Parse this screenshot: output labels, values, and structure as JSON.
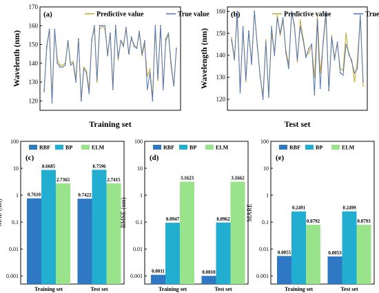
{
  "colors": {
    "predictive": "#c9a227",
    "true": "#4f74b5",
    "rbf": "#2f78c4",
    "bp": "#22aed1",
    "elm": "#99e38a"
  },
  "chart_data": [
    {
      "panel": "(a)",
      "type": "line",
      "xlabel": "Training set",
      "ylabel": "Wavelenth (nm)",
      "ylim": [
        115,
        170
      ],
      "yticks": [
        120,
        130,
        140,
        150,
        160,
        170
      ],
      "legend_position": "top-right",
      "series": [
        {
          "name": "Predictive value",
          "values": [
            126,
            148,
            158,
            122,
            157,
            142,
            139,
            139,
            140,
            152,
            140,
            141,
            132,
            153,
            121,
            138,
            136,
            126,
            153,
            158,
            130,
            158,
            160,
            158,
            145,
            156,
            128,
            160,
            142,
            152,
            150,
            158,
            145,
            153,
            150,
            148,
            156,
            144,
            150,
            133,
            137,
            122,
            158,
            131,
            160,
            127,
            152,
            155,
            138,
            128,
            148
          ]
        },
        {
          "name": "True value",
          "values": [
            125,
            149,
            158,
            119,
            158,
            140,
            138,
            138,
            139,
            152,
            139,
            140,
            130,
            153,
            120,
            137,
            135,
            124,
            152,
            160,
            131,
            160,
            160,
            160,
            144,
            156,
            126,
            160,
            143,
            152,
            149,
            159,
            145,
            154,
            149,
            148,
            157,
            145,
            152,
            126,
            135,
            120,
            160,
            132,
            160,
            126,
            153,
            156,
            140,
            128,
            148
          ]
        }
      ]
    },
    {
      "panel": "(b)",
      "type": "line",
      "xlabel": "Test set",
      "ylabel": "Wavelength (nm)",
      "ylim": [
        115,
        162
      ],
      "yticks": [
        120,
        130,
        140,
        150,
        160
      ],
      "legend_position": "top-right",
      "series": [
        {
          "name": "Predictive value",
          "values": [
            148,
            139,
            158,
            124,
            152,
            128,
            151,
            137,
            160,
            145,
            130,
            122,
            147,
            122,
            150,
            141,
            158,
            149,
            156,
            142,
            136,
            159,
            154,
            137,
            156,
            148,
            140,
            141,
            144,
            130,
            158,
            132,
            145,
            158,
            124,
            149,
            139,
            145,
            134,
            133,
            150,
            140,
            138,
            128,
            138,
            158,
            126
          ]
        },
        {
          "name": "True value",
          "values": [
            147,
            138,
            160,
            123,
            153,
            129,
            151,
            136,
            160,
            144,
            131,
            120,
            146,
            121,
            153,
            140,
            157,
            150,
            157,
            141,
            134,
            160,
            153,
            138,
            153,
            147,
            139,
            143,
            145,
            122,
            156,
            125,
            146,
            160,
            124,
            148,
            138,
            146,
            132,
            131,
            145,
            141,
            137,
            132,
            134,
            158,
            128
          ]
        }
      ]
    },
    {
      "panel": "(c)",
      "type": "bar",
      "ylabel": "MAE (nm)",
      "yscale": "log",
      "ylim": [
        0.0005,
        100
      ],
      "yticks": [
        "0.001",
        "0.01",
        "0.1",
        "1",
        "10",
        "100"
      ],
      "categories": [
        "Training set",
        "Test set"
      ],
      "legend_position": "top",
      "series": [
        {
          "name": "RBF",
          "values": [
            0.761,
            0.7422
          ],
          "labels": [
            "0.7610",
            "0.7422"
          ]
        },
        {
          "name": "BP",
          "values": [
            8.6685,
            8.7596
          ],
          "labels": [
            "8.6685",
            "8.7596"
          ]
        },
        {
          "name": "ELM",
          "values": [
            2.7365,
            2.7415
          ],
          "labels": [
            "2.7365",
            "2.7415"
          ]
        }
      ]
    },
    {
      "panel": "(d)",
      "type": "bar",
      "ylabel": "RMSE (nm)",
      "yscale": "log",
      "ylim": [
        0.0005,
        100
      ],
      "yticks": [
        "0.001",
        "0.01",
        "0.1",
        "1",
        "10",
        "100"
      ],
      "categories": [
        "Training set",
        "Test set"
      ],
      "legend_position": "top",
      "series": [
        {
          "name": "RBF",
          "values": [
            0.0011,
            0.001
          ],
          "labels": [
            "0.0011",
            "0.0010"
          ]
        },
        {
          "name": "BP",
          "values": [
            0.0947,
            0.0962
          ],
          "labels": [
            "0.0947",
            "0.0962"
          ]
        },
        {
          "name": "ELM",
          "values": [
            3.1623,
            3.1662
          ],
          "labels": [
            "3.1623",
            "3.1662"
          ]
        }
      ]
    },
    {
      "panel": "(e)",
      "type": "bar",
      "ylabel": "MARE",
      "yscale": "log",
      "ylim": [
        0.0005,
        100
      ],
      "yticks": [
        "0.001",
        "0.01",
        "0.1",
        "1",
        "10",
        "100"
      ],
      "categories": [
        "Training set",
        "Test set"
      ],
      "legend_position": "top",
      "series": [
        {
          "name": "RBF",
          "values": [
            0.0055,
            0.0053
          ],
          "labels": [
            "0.0055",
            "0.0053"
          ]
        },
        {
          "name": "BP",
          "values": [
            0.2491,
            0.2499
          ],
          "labels": [
            "0.2491",
            "0.2499"
          ]
        },
        {
          "name": "ELM",
          "values": [
            0.0792,
            0.0793
          ],
          "labels": [
            "0.0792",
            "0.0793"
          ]
        }
      ]
    }
  ]
}
